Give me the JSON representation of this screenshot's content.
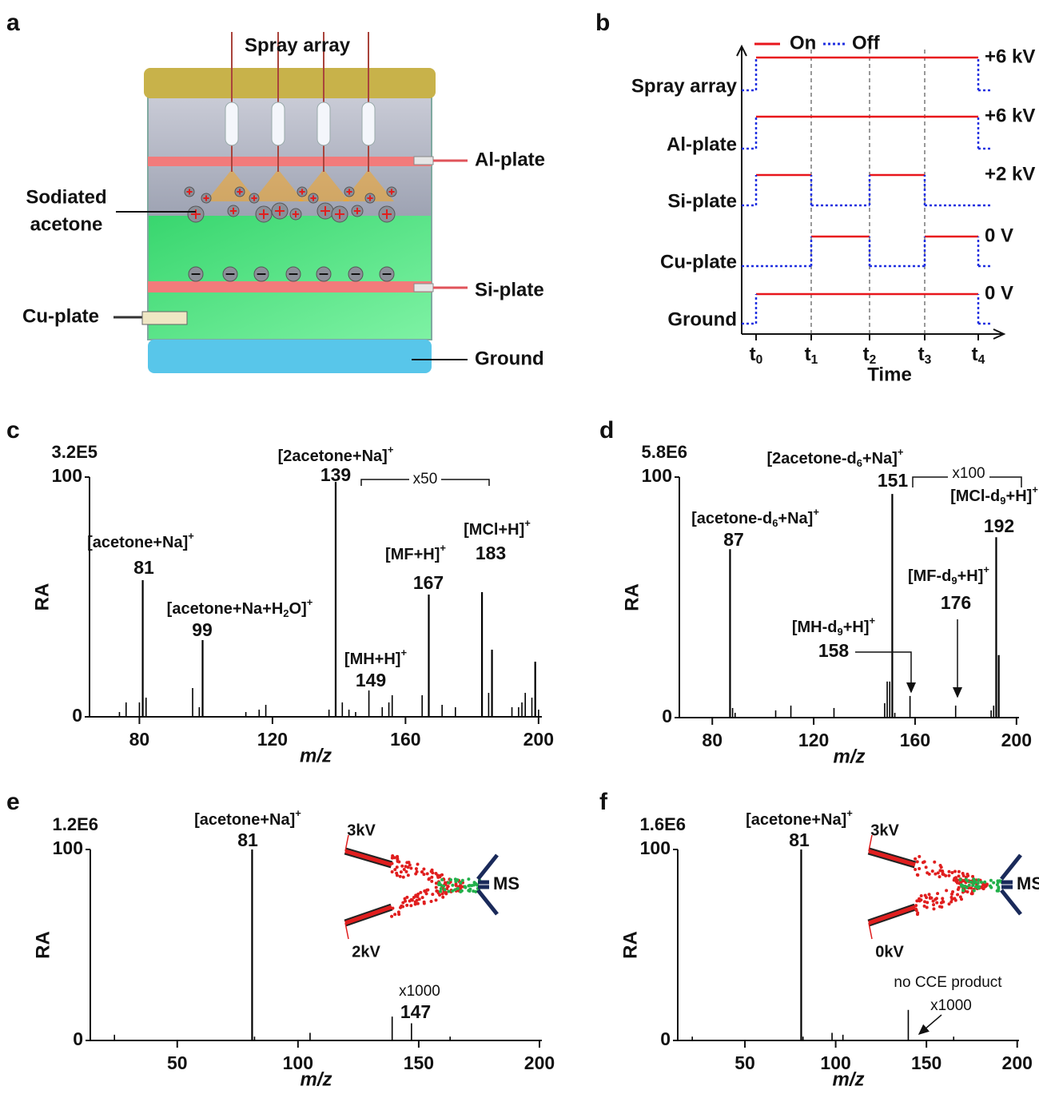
{
  "diagram": {
    "panel": "a",
    "labels": {
      "spray": "Spray array",
      "al": "Al-plate",
      "ion": [
        "Sodiated",
        "acetone"
      ],
      "si": "Si-plate",
      "cu": "Cu-plate",
      "ground": "Ground"
    }
  },
  "timing": {
    "panel": "b",
    "legend": {
      "on": "On",
      "off": "Off"
    },
    "rows": [
      {
        "label": "Spray array",
        "level": "+6 kV",
        "on": [
          true,
          true,
          true,
          true
        ]
      },
      {
        "label": "Al-plate",
        "level": "+6 kV",
        "on": [
          true,
          true,
          true,
          true
        ]
      },
      {
        "label": "Si-plate",
        "level": "+2 kV",
        "on": [
          true,
          false,
          true,
          false
        ]
      },
      {
        "label": "Cu-plate",
        "level": "0 V",
        "on": [
          false,
          true,
          false,
          true
        ]
      },
      {
        "label": "Ground",
        "level": "0 V",
        "on": [
          true,
          true,
          true,
          true
        ]
      }
    ],
    "times": [
      {
        "text": "t",
        "sub": "0"
      },
      {
        "text": "t",
        "sub": "1"
      },
      {
        "text": "t",
        "sub": "2"
      },
      {
        "text": "t",
        "sub": "3"
      },
      {
        "text": "t",
        "sub": "4"
      }
    ],
    "xlabel": "Time"
  },
  "chart_data": [
    {
      "type": "stick",
      "panel": "c",
      "scale": "3.2E5",
      "xlabel": "m/z",
      "ylabel": "RA",
      "color": "#000000",
      "xlim": [
        65,
        201
      ],
      "ylim": [
        0,
        100
      ],
      "xticks": [
        80,
        120,
        160,
        200
      ],
      "yticks": [
        0,
        100
      ],
      "x": [
        74,
        76,
        80,
        81,
        82,
        96,
        98,
        99,
        112,
        116,
        118,
        137,
        139,
        141,
        143,
        145,
        149,
        153,
        155,
        156,
        165,
        167,
        171,
        175,
        183,
        185,
        186,
        192,
        194,
        195,
        196,
        198,
        199,
        200
      ],
      "values": [
        2,
        6,
        6,
        57,
        8,
        12,
        4,
        32,
        2,
        3,
        5,
        3,
        98,
        6,
        3,
        2,
        11,
        4,
        6,
        9,
        9,
        51,
        5,
        4,
        52,
        10,
        28,
        4,
        4,
        6,
        10,
        8,
        23,
        3
      ],
      "magnification": "x50",
      "annotations": [
        {
          "parts": [
            {
              "text": "[acetone+Na]"
            },
            {
              "sup": "+"
            }
          ],
          "mz": 81
        },
        {
          "parts": [
            {
              "text": "[acetone+Na+H"
            },
            {
              "sub": "2"
            },
            {
              "text": "O]"
            },
            {
              "sup": "+"
            }
          ],
          "mz": 99
        },
        {
          "parts": [
            {
              "text": "[2acetone+Na]"
            },
            {
              "sup": "+"
            }
          ],
          "mz": 139
        },
        {
          "parts": [
            {
              "text": "[MH+H]"
            },
            {
              "sup": "+"
            }
          ],
          "mz": 149
        },
        {
          "parts": [
            {
              "text": "[MF+H]"
            },
            {
              "sup": "+"
            }
          ],
          "mz": 167
        },
        {
          "parts": [
            {
              "text": "[MCl+H]"
            },
            {
              "sup": "+"
            }
          ],
          "mz": 183
        }
      ]
    },
    {
      "type": "stick",
      "panel": "d",
      "scale": "5.8E6",
      "xlabel": "m/z",
      "ylabel": "RA",
      "color": "#000000",
      "xlim": [
        67,
        201
      ],
      "ylim": [
        0,
        100
      ],
      "xticks": [
        80,
        120,
        160,
        200
      ],
      "yticks": [
        0,
        100
      ],
      "x": [
        87,
        88,
        89,
        105,
        111,
        128,
        148,
        149,
        150,
        151,
        152,
        158,
        176,
        190,
        191,
        192,
        193
      ],
      "values": [
        70,
        4,
        2,
        3,
        5,
        4,
        6,
        15,
        15,
        93,
        2,
        9,
        5,
        3,
        5,
        75,
        26
      ],
      "magnification": "x100",
      "annotations": [
        {
          "parts": [
            {
              "text": "[acetone-d"
            },
            {
              "sub": "6"
            },
            {
              "text": "+Na]"
            },
            {
              "sup": "+"
            }
          ],
          "mz": 87
        },
        {
          "parts": [
            {
              "text": "[2acetone-d"
            },
            {
              "sub": "6"
            },
            {
              "text": "+Na]"
            },
            {
              "sup": "+"
            }
          ],
          "mz": 151
        },
        {
          "parts": [
            {
              "text": "[MCl-d"
            },
            {
              "sub": "9"
            },
            {
              "text": "+H]"
            },
            {
              "sup": "+"
            }
          ],
          "mz": 192
        },
        {
          "parts": [
            {
              "text": "[MF-d"
            },
            {
              "sub": "9"
            },
            {
              "text": "+H]"
            },
            {
              "sup": "+"
            }
          ],
          "mz": 176
        },
        {
          "parts": [
            {
              "text": "[MH-d"
            },
            {
              "sub": "9"
            },
            {
              "text": "+H]"
            },
            {
              "sup": "+"
            }
          ],
          "mz": 158
        }
      ]
    },
    {
      "type": "stick",
      "panel": "e",
      "scale": "1.2E6",
      "xlabel": "m/z",
      "ylabel": "RA",
      "color": "#000000",
      "xlim": [
        14,
        201
      ],
      "ylim": [
        0,
        100
      ],
      "xticks": [
        50,
        100,
        150,
        200
      ],
      "yticks": [
        0,
        100
      ],
      "x": [
        24,
        81,
        82,
        105,
        139,
        147,
        163
      ],
      "values": [
        3,
        100,
        2,
        4,
        12.5,
        9,
        2
      ],
      "magnification": "x1000",
      "annotations": [
        {
          "parts": [
            {
              "text": "[acetone+Na]"
            },
            {
              "sup": "+"
            }
          ],
          "mz": 81
        },
        {
          "mz": 147
        }
      ],
      "inset": {
        "top": "3kV",
        "bottom": "2kV",
        "target": "MS"
      }
    },
    {
      "type": "stick",
      "panel": "f",
      "scale": "1.6E6",
      "xlabel": "m/z",
      "ylabel": "RA",
      "color": "#000000",
      "xlim": [
        13,
        201
      ],
      "ylim": [
        0,
        100
      ],
      "xticks": [
        50,
        100,
        150,
        200
      ],
      "yticks": [
        0,
        100
      ],
      "x": [
        21,
        81,
        82,
        98,
        104,
        140,
        165
      ],
      "values": [
        2,
        100,
        2,
        4,
        3,
        16,
        2
      ],
      "magnification": "x1000",
      "note": "no CCE product",
      "annotations": [
        {
          "parts": [
            {
              "text": "[acetone+Na]"
            },
            {
              "sup": "+"
            }
          ],
          "mz": 81
        }
      ],
      "inset": {
        "top": "3kV",
        "bottom": "0kV",
        "target": "MS"
      }
    }
  ]
}
